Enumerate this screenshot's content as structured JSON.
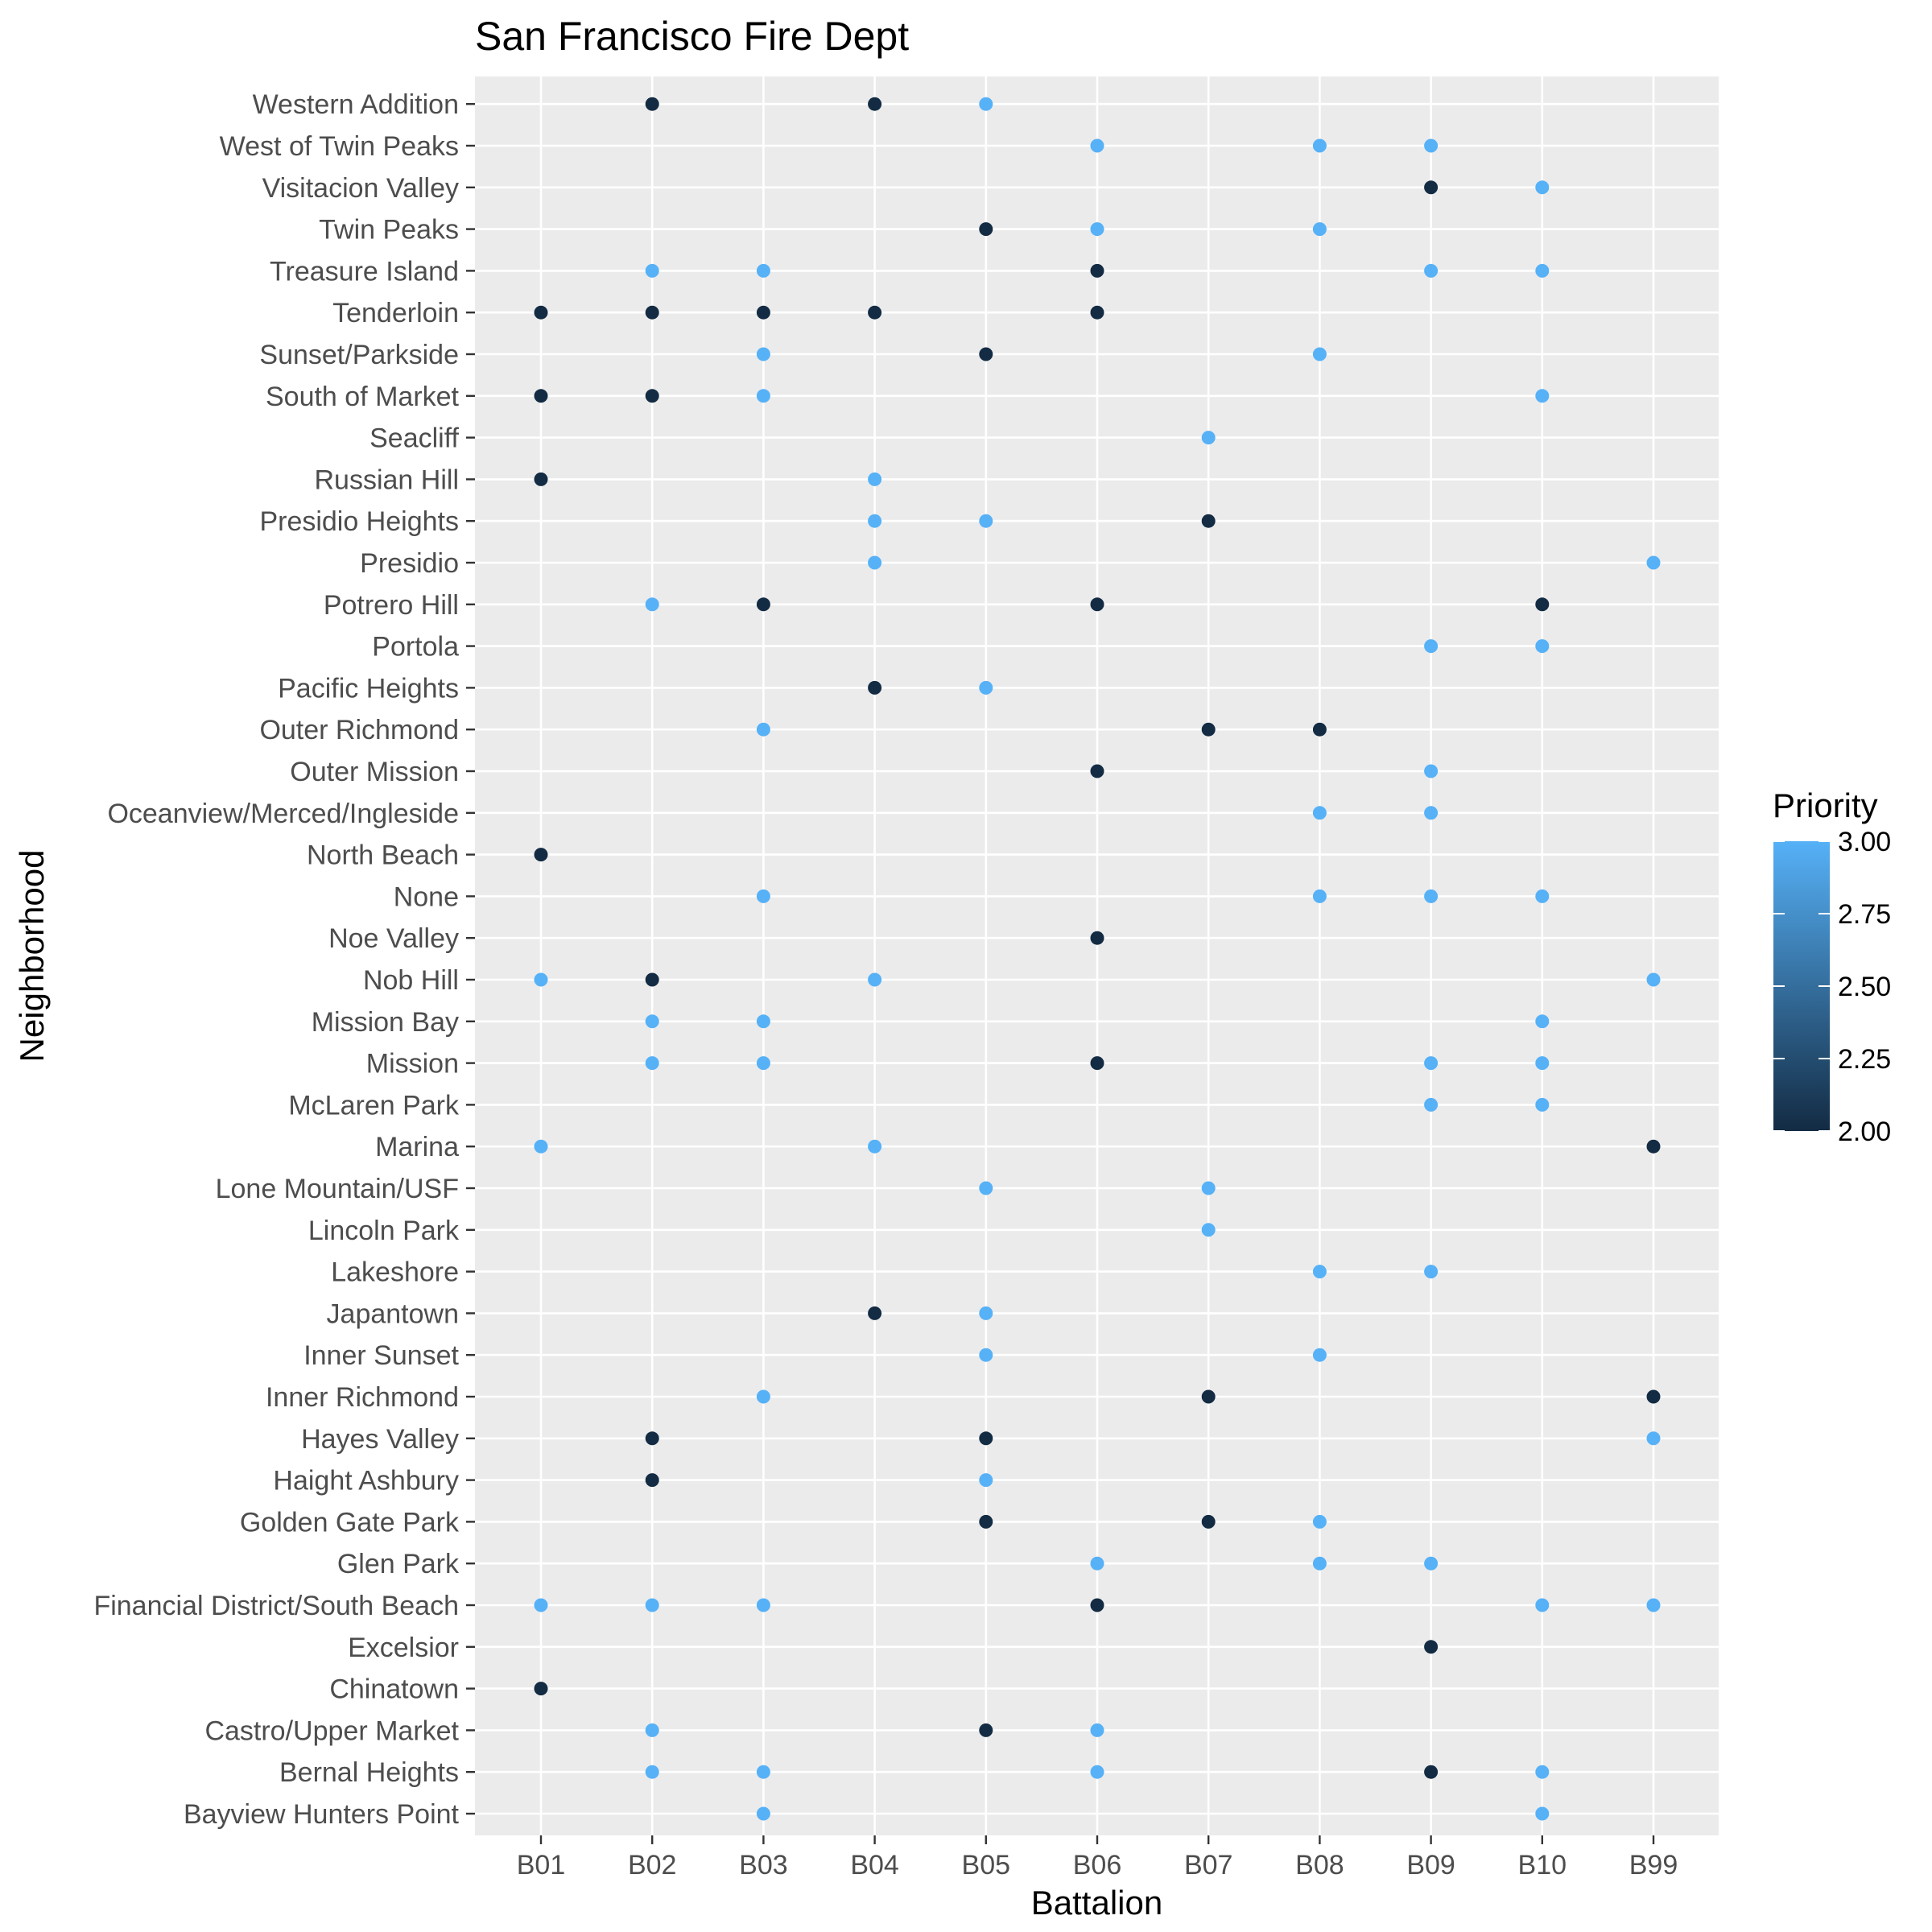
{
  "chart_data": {
    "type": "scatter",
    "title": "San Francisco Fire Dept",
    "xlabel": "Battalion",
    "ylabel": "Neighborhood",
    "x_categories": [
      "B01",
      "B02",
      "B03",
      "B04",
      "B05",
      "B06",
      "B07",
      "B08",
      "B09",
      "B10",
      "B99"
    ],
    "y_categories": [
      "Bayview Hunters Point",
      "Bernal Heights",
      "Castro/Upper Market",
      "Chinatown",
      "Excelsior",
      "Financial District/South Beach",
      "Glen Park",
      "Golden Gate Park",
      "Haight Ashbury",
      "Hayes Valley",
      "Inner Richmond",
      "Inner Sunset",
      "Japantown",
      "Lakeshore",
      "Lincoln Park",
      "Lone Mountain/USF",
      "Marina",
      "McLaren Park",
      "Mission",
      "Mission Bay",
      "Nob Hill",
      "Noe Valley",
      "None",
      "North Beach",
      "Oceanview/Merced/Ingleside",
      "Outer Mission",
      "Outer Richmond",
      "Pacific Heights",
      "Portola",
      "Potrero Hill",
      "Presidio",
      "Presidio Heights",
      "Russian Hill",
      "Seacliff",
      "South of Market",
      "Sunset/Parkside",
      "Tenderloin",
      "Treasure Island",
      "Twin Peaks",
      "Visitacion Valley",
      "West of Twin Peaks",
      "Western Addition"
    ],
    "color_scale": {
      "title": "Priority",
      "min": 2.0,
      "max": 3.0,
      "low_color": "#132B43",
      "high_color": "#56B1F7",
      "ticks": [
        "2.00",
        "2.25",
        "2.50",
        "2.75",
        "3.00"
      ]
    },
    "background": "#EBEBEB",
    "grid": true,
    "legend_position": "right",
    "points": [
      {
        "y": "Western Addition",
        "x": "B02",
        "priority": 2
      },
      {
        "y": "Western Addition",
        "x": "B04",
        "priority": 2
      },
      {
        "y": "Western Addition",
        "x": "B05",
        "priority": 3
      },
      {
        "y": "West of Twin Peaks",
        "x": "B06",
        "priority": 3
      },
      {
        "y": "West of Twin Peaks",
        "x": "B08",
        "priority": 3
      },
      {
        "y": "West of Twin Peaks",
        "x": "B09",
        "priority": 3
      },
      {
        "y": "Visitacion Valley",
        "x": "B09",
        "priority": 2
      },
      {
        "y": "Visitacion Valley",
        "x": "B10",
        "priority": 3
      },
      {
        "y": "Twin Peaks",
        "x": "B05",
        "priority": 2
      },
      {
        "y": "Twin Peaks",
        "x": "B06",
        "priority": 3
      },
      {
        "y": "Twin Peaks",
        "x": "B08",
        "priority": 3
      },
      {
        "y": "Treasure Island",
        "x": "B02",
        "priority": 3
      },
      {
        "y": "Treasure Island",
        "x": "B03",
        "priority": 3
      },
      {
        "y": "Treasure Island",
        "x": "B06",
        "priority": 2
      },
      {
        "y": "Treasure Island",
        "x": "B09",
        "priority": 3
      },
      {
        "y": "Treasure Island",
        "x": "B10",
        "priority": 3
      },
      {
        "y": "Tenderloin",
        "x": "B01",
        "priority": 2
      },
      {
        "y": "Tenderloin",
        "x": "B02",
        "priority": 2
      },
      {
        "y": "Tenderloin",
        "x": "B03",
        "priority": 2
      },
      {
        "y": "Tenderloin",
        "x": "B04",
        "priority": 2
      },
      {
        "y": "Tenderloin",
        "x": "B06",
        "priority": 2
      },
      {
        "y": "Sunset/Parkside",
        "x": "B03",
        "priority": 3
      },
      {
        "y": "Sunset/Parkside",
        "x": "B05",
        "priority": 2
      },
      {
        "y": "Sunset/Parkside",
        "x": "B08",
        "priority": 3
      },
      {
        "y": "South of Market",
        "x": "B01",
        "priority": 2
      },
      {
        "y": "South of Market",
        "x": "B02",
        "priority": 2
      },
      {
        "y": "South of Market",
        "x": "B03",
        "priority": 3
      },
      {
        "y": "South of Market",
        "x": "B10",
        "priority": 3
      },
      {
        "y": "Seacliff",
        "x": "B07",
        "priority": 3
      },
      {
        "y": "Russian Hill",
        "x": "B01",
        "priority": 2
      },
      {
        "y": "Russian Hill",
        "x": "B04",
        "priority": 3
      },
      {
        "y": "Presidio Heights",
        "x": "B04",
        "priority": 3
      },
      {
        "y": "Presidio Heights",
        "x": "B05",
        "priority": 3
      },
      {
        "y": "Presidio Heights",
        "x": "B07",
        "priority": 2
      },
      {
        "y": "Presidio",
        "x": "B04",
        "priority": 3
      },
      {
        "y": "Presidio",
        "x": "B99",
        "priority": 3
      },
      {
        "y": "Potrero Hill",
        "x": "B02",
        "priority": 3
      },
      {
        "y": "Potrero Hill",
        "x": "B03",
        "priority": 2
      },
      {
        "y": "Potrero Hill",
        "x": "B06",
        "priority": 2
      },
      {
        "y": "Potrero Hill",
        "x": "B10",
        "priority": 2
      },
      {
        "y": "Portola",
        "x": "B09",
        "priority": 3
      },
      {
        "y": "Portola",
        "x": "B10",
        "priority": 3
      },
      {
        "y": "Pacific Heights",
        "x": "B04",
        "priority": 2
      },
      {
        "y": "Pacific Heights",
        "x": "B05",
        "priority": 3
      },
      {
        "y": "Outer Richmond",
        "x": "B03",
        "priority": 3
      },
      {
        "y": "Outer Richmond",
        "x": "B07",
        "priority": 2
      },
      {
        "y": "Outer Richmond",
        "x": "B08",
        "priority": 2
      },
      {
        "y": "Outer Mission",
        "x": "B06",
        "priority": 2
      },
      {
        "y": "Outer Mission",
        "x": "B09",
        "priority": 3
      },
      {
        "y": "Oceanview/Merced/Ingleside",
        "x": "B08",
        "priority": 3
      },
      {
        "y": "Oceanview/Merced/Ingleside",
        "x": "B09",
        "priority": 3
      },
      {
        "y": "North Beach",
        "x": "B01",
        "priority": 2
      },
      {
        "y": "None",
        "x": "B03",
        "priority": 3
      },
      {
        "y": "None",
        "x": "B08",
        "priority": 3
      },
      {
        "y": "None",
        "x": "B09",
        "priority": 3
      },
      {
        "y": "None",
        "x": "B10",
        "priority": 3
      },
      {
        "y": "Noe Valley",
        "x": "B06",
        "priority": 2
      },
      {
        "y": "Nob Hill",
        "x": "B01",
        "priority": 3
      },
      {
        "y": "Nob Hill",
        "x": "B02",
        "priority": 2
      },
      {
        "y": "Nob Hill",
        "x": "B04",
        "priority": 3
      },
      {
        "y": "Nob Hill",
        "x": "B99",
        "priority": 3
      },
      {
        "y": "Mission Bay",
        "x": "B02",
        "priority": 3
      },
      {
        "y": "Mission Bay",
        "x": "B03",
        "priority": 3
      },
      {
        "y": "Mission Bay",
        "x": "B10",
        "priority": 3
      },
      {
        "y": "Mission",
        "x": "B02",
        "priority": 3
      },
      {
        "y": "Mission",
        "x": "B03",
        "priority": 3
      },
      {
        "y": "Mission",
        "x": "B06",
        "priority": 2
      },
      {
        "y": "Mission",
        "x": "B09",
        "priority": 3
      },
      {
        "y": "Mission",
        "x": "B10",
        "priority": 3
      },
      {
        "y": "McLaren Park",
        "x": "B09",
        "priority": 3
      },
      {
        "y": "McLaren Park",
        "x": "B10",
        "priority": 3
      },
      {
        "y": "Marina",
        "x": "B01",
        "priority": 3
      },
      {
        "y": "Marina",
        "x": "B04",
        "priority": 3
      },
      {
        "y": "Marina",
        "x": "B99",
        "priority": 2
      },
      {
        "y": "Lone Mountain/USF",
        "x": "B05",
        "priority": 3
      },
      {
        "y": "Lone Mountain/USF",
        "x": "B07",
        "priority": 3
      },
      {
        "y": "Lincoln Park",
        "x": "B07",
        "priority": 3
      },
      {
        "y": "Lakeshore",
        "x": "B08",
        "priority": 3
      },
      {
        "y": "Lakeshore",
        "x": "B09",
        "priority": 3
      },
      {
        "y": "Japantown",
        "x": "B04",
        "priority": 2
      },
      {
        "y": "Japantown",
        "x": "B05",
        "priority": 3
      },
      {
        "y": "Inner Sunset",
        "x": "B05",
        "priority": 3
      },
      {
        "y": "Inner Sunset",
        "x": "B08",
        "priority": 3
      },
      {
        "y": "Inner Richmond",
        "x": "B03",
        "priority": 3
      },
      {
        "y": "Inner Richmond",
        "x": "B07",
        "priority": 2
      },
      {
        "y": "Inner Richmond",
        "x": "B99",
        "priority": 2
      },
      {
        "y": "Hayes Valley",
        "x": "B02",
        "priority": 2
      },
      {
        "y": "Hayes Valley",
        "x": "B05",
        "priority": 2
      },
      {
        "y": "Hayes Valley",
        "x": "B99",
        "priority": 3
      },
      {
        "y": "Haight Ashbury",
        "x": "B02",
        "priority": 2
      },
      {
        "y": "Haight Ashbury",
        "x": "B05",
        "priority": 3
      },
      {
        "y": "Golden Gate Park",
        "x": "B05",
        "priority": 2
      },
      {
        "y": "Golden Gate Park",
        "x": "B07",
        "priority": 2
      },
      {
        "y": "Golden Gate Park",
        "x": "B08",
        "priority": 3
      },
      {
        "y": "Glen Park",
        "x": "B06",
        "priority": 3
      },
      {
        "y": "Glen Park",
        "x": "B08",
        "priority": 3
      },
      {
        "y": "Glen Park",
        "x": "B09",
        "priority": 3
      },
      {
        "y": "Financial District/South Beach",
        "x": "B01",
        "priority": 3
      },
      {
        "y": "Financial District/South Beach",
        "x": "B02",
        "priority": 3
      },
      {
        "y": "Financial District/South Beach",
        "x": "B03",
        "priority": 3
      },
      {
        "y": "Financial District/South Beach",
        "x": "B06",
        "priority": 2
      },
      {
        "y": "Financial District/South Beach",
        "x": "B10",
        "priority": 3
      },
      {
        "y": "Financial District/South Beach",
        "x": "B99",
        "priority": 3
      },
      {
        "y": "Excelsior",
        "x": "B09",
        "priority": 2
      },
      {
        "y": "Chinatown",
        "x": "B01",
        "priority": 2
      },
      {
        "y": "Castro/Upper Market",
        "x": "B02",
        "priority": 3
      },
      {
        "y": "Castro/Upper Market",
        "x": "B05",
        "priority": 2
      },
      {
        "y": "Castro/Upper Market",
        "x": "B06",
        "priority": 3
      },
      {
        "y": "Bernal Heights",
        "x": "B02",
        "priority": 3
      },
      {
        "y": "Bernal Heights",
        "x": "B03",
        "priority": 3
      },
      {
        "y": "Bernal Heights",
        "x": "B06",
        "priority": 3
      },
      {
        "y": "Bernal Heights",
        "x": "B09",
        "priority": 2
      },
      {
        "y": "Bernal Heights",
        "x": "B10",
        "priority": 3
      },
      {
        "y": "Bayview Hunters Point",
        "x": "B03",
        "priority": 3
      },
      {
        "y": "Bayview Hunters Point",
        "x": "B10",
        "priority": 3
      }
    ]
  }
}
